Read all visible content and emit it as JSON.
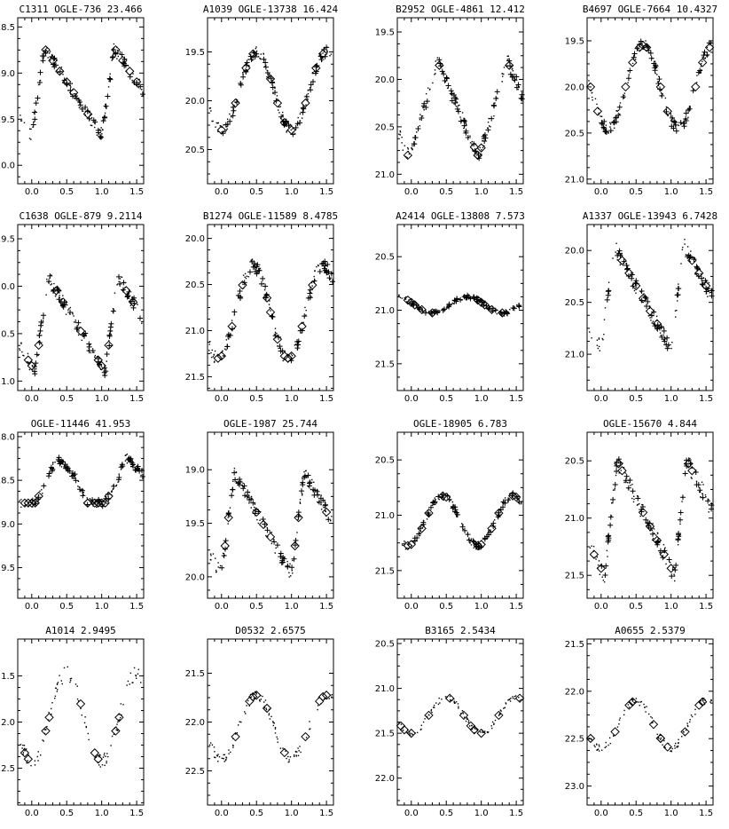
{
  "chart_data": [
    {
      "type": "scatter",
      "title": "C1311   OGLE-736   23.466",
      "xlim": [
        -0.2,
        1.6
      ],
      "ylim": [
        20.2,
        18.4
      ],
      "yticks": [
        18.5,
        19.0,
        19.5,
        20.0
      ],
      "xticks": [
        0.0,
        0.5,
        1.0,
        1.5
      ],
      "shape": "steep",
      "min_phase": 0.0,
      "amp": 0.95,
      "mean": 19.2,
      "crosses": true,
      "diamonds": [
        0.2,
        0.3,
        0.4,
        0.5,
        0.6,
        0.8
      ]
    },
    {
      "type": "scatter",
      "title": "A1039   OGLE-13738   16.424",
      "xlim": [
        -0.2,
        1.6
      ],
      "ylim": [
        20.85,
        19.15
      ],
      "yticks": [
        19.5,
        20.0,
        20.5
      ],
      "xticks": [
        0.0,
        0.5,
        1.0,
        1.5
      ],
      "shape": "sine2",
      "min_phase": 0.0,
      "amp": 0.8,
      "mean": 19.9,
      "crosses": true,
      "diamonds": [
        0.0,
        0.2,
        0.35,
        0.45,
        0.7,
        0.8,
        0.9
      ]
    },
    {
      "type": "scatter",
      "title": "B2952   OGLE-4861   12.412",
      "xlim": [
        -0.2,
        1.6
      ],
      "ylim": [
        21.1,
        19.35
      ],
      "yticks": [
        19.5,
        20.0,
        20.5,
        21.0
      ],
      "xticks": [
        0.0,
        0.5,
        1.0,
        1.5
      ],
      "shape": "slow",
      "min_phase": 0.95,
      "amp": 1.0,
      "mean": 20.3,
      "crosses": true,
      "diamonds": [
        -0.05,
        0.4,
        0.9,
        0.95,
        1.0
      ]
    },
    {
      "type": "scatter",
      "title": "B4697   OGLE-7664   10.4327",
      "xlim": [
        -0.2,
        1.6
      ],
      "ylim": [
        21.05,
        19.25
      ],
      "yticks": [
        19.5,
        20.0,
        20.5,
        21.0
      ],
      "xticks": [
        0.0,
        0.5,
        1.0,
        1.5
      ],
      "shape": "sine2",
      "min_phase": 0.1,
      "amp": 0.9,
      "mean": 20.0,
      "crosses": true,
      "diamonds": [
        -0.15,
        -0.05,
        0.35,
        0.45,
        0.55,
        0.6,
        0.65
      ]
    },
    {
      "type": "scatter",
      "title": "C1638   OGLE-879   9.2114",
      "xlim": [
        -0.2,
        1.6
      ],
      "ylim": [
        21.1,
        19.35
      ],
      "yticks": [
        19.5,
        20.0,
        20.5,
        21.0
      ],
      "xticks": [
        0.0,
        0.5,
        1.0,
        1.5
      ],
      "shape": "steep",
      "min_phase": 0.05,
      "amp": 1.0,
      "mean": 20.4,
      "crosses": true,
      "diamonds": [
        -0.05,
        0.0,
        0.1,
        0.35,
        0.45,
        0.7
      ]
    },
    {
      "type": "scatter",
      "title": "B1274   OGLE-11589   8.4785",
      "xlim": [
        -0.2,
        1.6
      ],
      "ylim": [
        21.65,
        19.85
      ],
      "yticks": [
        20.0,
        20.5,
        21.0,
        21.5
      ],
      "xticks": [
        0.0,
        0.5,
        1.0,
        1.5
      ],
      "shape": "sine2",
      "min_phase": 0.95,
      "amp": 1.0,
      "mean": 20.8,
      "crosses": true,
      "diamonds": [
        -0.05,
        0.0,
        0.15,
        0.3,
        0.65,
        0.7,
        0.8,
        0.9,
        0.95
      ]
    },
    {
      "type": "scatter",
      "title": "A2414   OGLE-13808   7.573",
      "xlim": [
        -0.2,
        1.6
      ],
      "ylim": [
        21.75,
        20.2
      ],
      "yticks": [
        20.5,
        21.0,
        21.5
      ],
      "xticks": [
        0.0,
        0.5,
        1.0,
        1.5
      ],
      "shape": "flat",
      "min_phase": 0.3,
      "amp": 0.25,
      "mean": 20.95,
      "crosses": true,
      "diamonds": [
        -0.05,
        0.0,
        0.05,
        0.15,
        0.3
      ]
    },
    {
      "type": "scatter",
      "title": "A1337   OGLE-13943   6.7428",
      "xlim": [
        -0.2,
        1.6
      ],
      "ylim": [
        21.35,
        19.75
      ],
      "yticks": [
        20.0,
        20.5,
        21.0
      ],
      "xticks": [
        0.0,
        0.5,
        1.0,
        1.5
      ],
      "shape": "steep",
      "min_phase": 0.0,
      "amp": 1.0,
      "mean": 20.45,
      "crosses": true,
      "diamonds": [
        0.3,
        0.4,
        0.5,
        0.6,
        0.7,
        0.8
      ]
    },
    {
      "type": "scatter",
      "title": "OGLE-11446   41.953",
      "xlim": [
        -0.2,
        1.6
      ],
      "ylim": [
        19.85,
        17.95
      ],
      "yticks": [
        18.0,
        18.5,
        19.0,
        19.5
      ],
      "xticks": [
        0.0,
        0.5,
        1.0,
        1.5
      ],
      "shape": "plateau",
      "min_phase": 0.05,
      "amp": 0.65,
      "mean": 18.5,
      "crosses": true,
      "diamonds": [
        -0.2,
        -0.1,
        -0.05,
        0.0,
        0.05,
        0.1,
        0.8
      ]
    },
    {
      "type": "scatter",
      "title": "OGLE-1987   25.744",
      "xlim": [
        -0.2,
        1.6
      ],
      "ylim": [
        20.2,
        18.65
      ],
      "yticks": [
        19.0,
        19.5,
        20.0
      ],
      "xticks": [
        0.0,
        0.5,
        1.0,
        1.5
      ],
      "shape": "steep",
      "min_phase": 0.0,
      "amp": 0.95,
      "mean": 19.5,
      "crosses": true,
      "diamonds": [
        0.05,
        0.1,
        0.5,
        0.6,
        0.7
      ]
    },
    {
      "type": "scatter",
      "title": "OGLE-18905   6.783",
      "xlim": [
        -0.2,
        1.6
      ],
      "ylim": [
        21.75,
        20.25
      ],
      "yticks": [
        20.5,
        21.0,
        21.5
      ],
      "xticks": [
        0.0,
        0.5,
        1.0,
        1.5
      ],
      "shape": "sine2",
      "min_phase": 0.95,
      "amp": 0.45,
      "mean": 21.05,
      "crosses": true,
      "diamonds": [
        -0.05,
        0.0,
        0.15,
        0.25,
        0.45,
        0.5
      ]
    },
    {
      "type": "scatter",
      "title": "OGLE-15670   4.844",
      "xlim": [
        -0.2,
        1.6
      ],
      "ylim": [
        21.7,
        20.25
      ],
      "yticks": [
        20.5,
        21.0,
        21.5
      ],
      "xticks": [
        0.0,
        0.5,
        1.0,
        1.5
      ],
      "shape": "steep",
      "min_phase": 0.05,
      "amp": 1.0,
      "mean": 21.0,
      "crosses": true,
      "diamonds": [
        -0.1,
        0.0,
        0.25,
        0.3,
        0.6,
        0.7,
        0.8
      ]
    },
    {
      "type": "scatter",
      "title": "A1014   2.9495",
      "xlim": [
        -0.2,
        1.6
      ],
      "ylim": [
        22.9,
        21.1
      ],
      "yticks": [
        21.5,
        22.0,
        22.5
      ],
      "xticks": [
        0.0,
        0.5,
        1.0,
        1.5
      ],
      "shape": "sine2",
      "min_phase": 0.0,
      "amp": 0.95,
      "mean": 21.95,
      "crosses": false,
      "diamonds": [
        -0.1,
        -0.05,
        0.2,
        0.25,
        0.7
      ]
    },
    {
      "type": "scatter",
      "title": "D0532   2.6575",
      "xlim": [
        -0.2,
        1.6
      ],
      "ylim": [
        22.85,
        21.15
      ],
      "yticks": [
        21.5,
        22.0,
        22.5
      ],
      "xticks": [
        0.0,
        0.5,
        1.0,
        1.5
      ],
      "shape": "sine2",
      "min_phase": 0.0,
      "amp": 0.65,
      "mean": 22.05,
      "crosses": false,
      "diamonds": [
        0.2,
        0.4,
        0.45,
        0.5,
        0.65,
        0.9
      ]
    },
    {
      "type": "scatter",
      "title": "B3165   2.5434",
      "xlim": [
        -0.2,
        1.6
      ],
      "ylim": [
        22.3,
        20.45
      ],
      "yticks": [
        20.5,
        21.0,
        21.5,
        22.0
      ],
      "xticks": [
        0.0,
        0.5,
        1.0,
        1.5
      ],
      "shape": "sine2",
      "min_phase": 0.0,
      "amp": 0.4,
      "mean": 21.3,
      "crosses": false,
      "diamonds": [
        -0.15,
        -0.1,
        0.0,
        0.25,
        0.55,
        0.75
      ]
    },
    {
      "type": "scatter",
      "title": "A0655   2.5379",
      "xlim": [
        -0.2,
        1.6
      ],
      "ylim": [
        23.2,
        21.45
      ],
      "yticks": [
        21.5,
        22.0,
        22.5,
        23.0
      ],
      "xticks": [
        0.0,
        0.5,
        1.0,
        1.5
      ],
      "shape": "sine2",
      "min_phase": 0.0,
      "amp": 0.5,
      "mean": 22.35,
      "crosses": false,
      "diamonds": [
        -0.15,
        0.2,
        0.4,
        0.45,
        0.75,
        0.85,
        0.95
      ]
    }
  ]
}
